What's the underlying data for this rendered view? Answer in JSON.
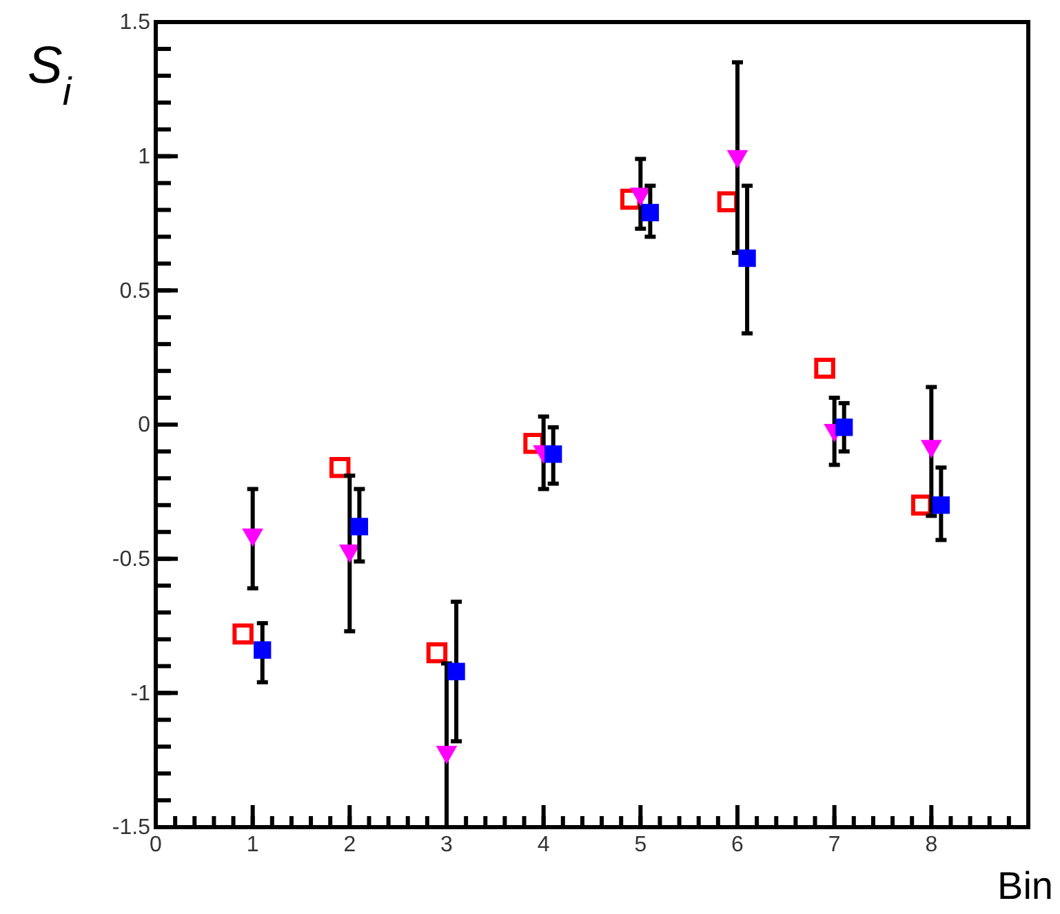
{
  "chart_data": {
    "type": "scatter",
    "xlabel": "Bin",
    "ylabel": "S$_{i}$",
    "xlim": [
      0,
      9
    ],
    "xticks": [
      0,
      1,
      2,
      3,
      4,
      5,
      6,
      7,
      8
    ],
    "ylim": [
      -1.5,
      1.5
    ],
    "yticks": [
      {
        "value": -1.5,
        "label": "-1.5"
      },
      {
        "value": -1,
        "label": "-1"
      },
      {
        "value": -0.5,
        "label": "-0.5"
      },
      0,
      0.5,
      1,
      1.5
    ],
    "grid": false,
    "series": [
      {
        "color": "#ff0000",
        "marker": "square",
        "x": [
          0.9,
          1.9,
          2.9,
          3.9,
          4.9,
          5.9,
          6.9,
          7.9
        ],
        "values": [
          -0.78,
          -0.16,
          -0.85,
          -0.07,
          0.84,
          0.83,
          0.21,
          -0.3
        ]
      },
      {
        "color": "#ff00ff",
        "marker": "triangle",
        "x": [
          1,
          2,
          3,
          4,
          5,
          6,
          7,
          8
        ],
        "values": [
          -0.41,
          -0.47,
          -1.22,
          -0.1,
          0.86,
          1.0,
          -0.02,
          -0.08
        ],
        "errors": [
          [
            -0.61,
            -0.24
          ],
          [
            -0.77,
            -0.19
          ],
          [
            -1.5,
            -0.89
          ],
          [
            -0.24,
            0.03
          ],
          [
            0.73,
            0.99
          ],
          [
            0.64,
            1.35
          ],
          [
            -0.15,
            0.1
          ],
          [
            -0.34,
            0.14
          ]
        ]
      },
      {
        "color": "#0000ff",
        "marker": "square",
        "x": [
          1.1,
          2.1,
          3.1,
          4.1,
          5.1,
          6.1,
          7.1,
          8.1
        ],
        "values": [
          -0.84,
          -0.38,
          -0.92,
          -0.11,
          0.79,
          0.62,
          -0.01,
          -0.3
        ],
        "errors": [
          [
            -0.96,
            -0.74
          ],
          [
            -0.51,
            -0.24
          ],
          [
            -1.18,
            -0.66
          ],
          [
            -0.22,
            -0.01
          ],
          [
            0.7,
            0.89
          ],
          [
            0.34,
            0.89
          ],
          [
            -0.1,
            0.08
          ],
          [
            -0.43,
            -0.16
          ]
        ]
      }
    ]
  }
}
